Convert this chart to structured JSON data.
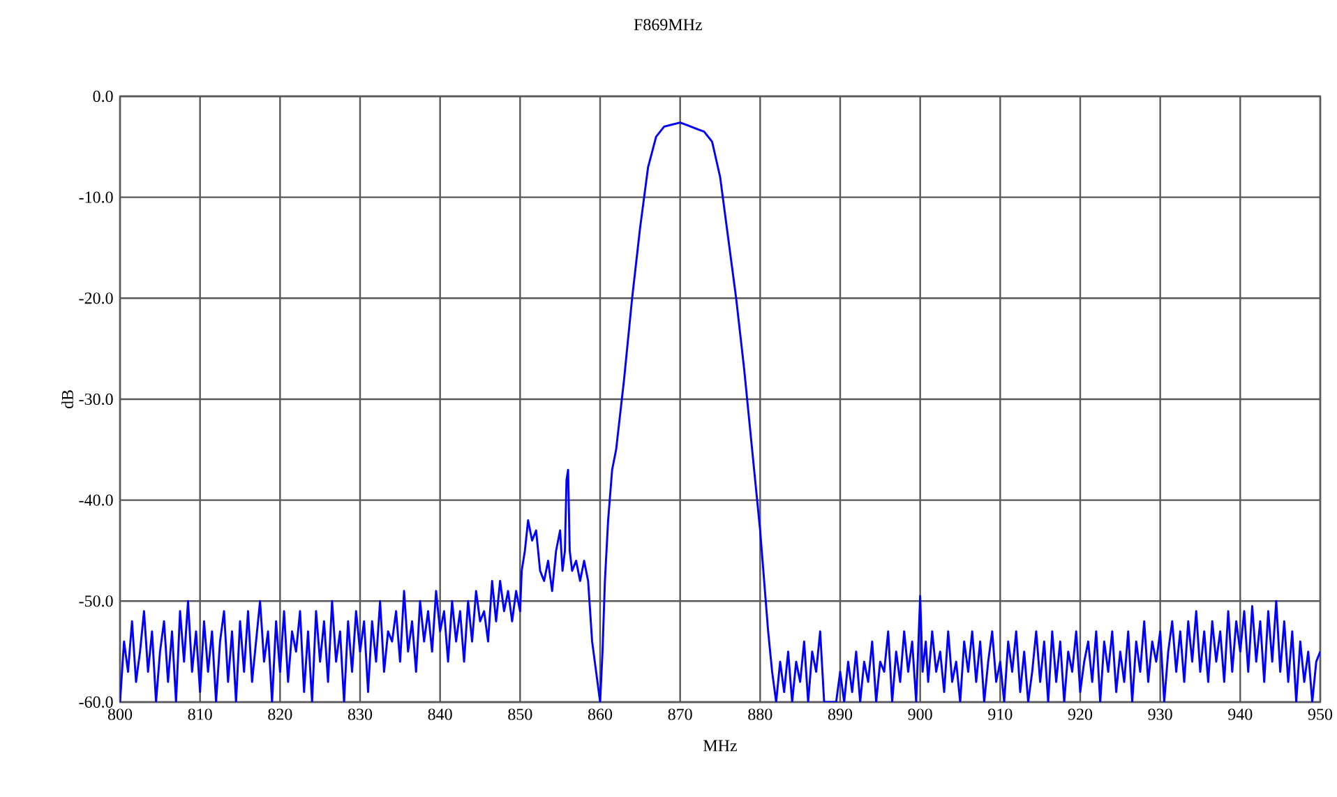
{
  "chart_data": {
    "type": "line",
    "title": "F869MHz",
    "xlabel": "MHz",
    "ylabel": "dB",
    "xlim": [
      800,
      950
    ],
    "xticks": [
      800,
      810,
      820,
      830,
      840,
      850,
      860,
      870,
      880,
      890,
      900,
      910,
      920,
      930,
      940,
      950
    ],
    "ylim": [
      -60,
      0
    ],
    "yticks": [
      {
        "value": -60,
        "label": "-60.0"
      },
      {
        "value": -50,
        "label": "-50.0"
      },
      {
        "value": -40,
        "label": "-40.0"
      },
      {
        "value": -30,
        "label": "-30.0"
      },
      {
        "value": -20,
        "label": "-20.0"
      },
      {
        "value": -10,
        "label": "-10.0"
      },
      {
        "value": 0,
        "label": "0.0"
      }
    ],
    "grid": true,
    "marker": "none",
    "line_style": "solid",
    "series": [
      {
        "color": "#0000ff",
        "x": [
          800,
          800.5,
          801,
          801.5,
          802,
          802.5,
          803,
          803.5,
          804,
          804.5,
          805,
          805.5,
          806,
          806.5,
          807,
          807.5,
          808,
          808.5,
          809,
          809.5,
          810,
          810.5,
          811,
          811.5,
          812,
          812.5,
          813,
          813.5,
          814,
          814.5,
          815,
          815.5,
          816,
          816.5,
          817,
          817.5,
          818,
          818.5,
          819,
          819.5,
          820,
          820.5,
          821,
          821.5,
          822,
          822.5,
          823,
          823.5,
          824,
          824.5,
          825,
          825.5,
          826,
          826.5,
          827,
          827.5,
          828,
          828.5,
          829,
          829.5,
          830,
          830.5,
          831,
          831.5,
          832,
          832.5,
          833,
          833.5,
          834,
          834.5,
          835,
          835.5,
          836,
          836.5,
          837,
          837.5,
          838,
          838.5,
          839,
          839.5,
          840,
          840.5,
          841,
          841.5,
          842,
          842.5,
          843,
          843.5,
          844,
          844.5,
          845,
          845.5,
          846,
          846.5,
          847,
          847.5,
          848,
          848.5,
          849,
          849.5,
          850,
          850.2,
          850.6,
          851,
          851.5,
          852,
          852.5,
          853,
          853.5,
          854,
          854.5,
          855,
          855.3,
          855.6,
          855.8,
          856,
          856.2,
          856.5,
          857,
          857.5,
          858,
          858.5,
          859,
          859.5,
          860,
          860.3,
          860.6,
          861,
          861.5,
          862,
          863,
          864,
          865,
          866,
          867,
          868,
          869,
          870,
          871,
          872,
          873,
          874,
          875,
          876,
          877,
          878,
          879,
          880,
          880.5,
          881,
          881.5,
          882,
          882.5,
          883,
          883.5,
          884,
          884.5,
          885,
          885.5,
          886,
          886.5,
          887,
          887.5,
          888,
          888.5,
          889,
          889.5,
          890,
          890.5,
          891,
          891.5,
          892,
          892.5,
          893,
          893.5,
          894,
          894.5,
          895,
          895.5,
          896,
          896.5,
          897,
          897.5,
          898,
          898.5,
          899,
          899.5,
          900,
          900.3,
          900.7,
          901,
          901.5,
          902,
          902.5,
          903,
          903.5,
          904,
          904.5,
          905,
          905.5,
          906,
          906.5,
          907,
          907.5,
          908,
          908.5,
          909,
          909.5,
          910,
          910.5,
          911,
          911.5,
          912,
          912.5,
          913,
          913.5,
          914,
          914.5,
          915,
          915.5,
          916,
          916.5,
          917,
          917.5,
          918,
          918.5,
          919,
          919.5,
          920,
          920.5,
          921,
          921.5,
          922,
          922.5,
          923,
          923.5,
          924,
          924.5,
          925,
          925.5,
          926,
          926.5,
          927,
          927.5,
          928,
          928.5,
          929,
          929.5,
          930,
          930.5,
          931,
          931.5,
          932,
          932.5,
          933,
          933.5,
          934,
          934.5,
          935,
          935.5,
          936,
          936.5,
          937,
          937.5,
          938,
          938.5,
          939,
          939.5,
          940,
          940.5,
          941,
          941.5,
          942,
          942.5,
          943,
          943.5,
          944,
          944.5,
          945,
          945.5,
          946,
          946.5,
          947,
          947.5,
          948,
          948.5,
          949,
          949.5,
          950
        ],
        "values": [
          -60,
          -54,
          -57,
          -52,
          -58,
          -55,
          -51,
          -57,
          -53,
          -60,
          -55,
          -52,
          -58,
          -53,
          -60,
          -51,
          -56,
          -50,
          -57,
          -53,
          -59,
          -52,
          -57,
          -53,
          -60,
          -54,
          -51,
          -58,
          -53,
          -60,
          -52,
          -57,
          -51,
          -58,
          -54,
          -50,
          -56,
          -53,
          -60,
          -52,
          -57,
          -51,
          -58,
          -53,
          -55,
          -51,
          -59,
          -53,
          -60,
          -51,
          -56,
          -52,
          -58,
          -50,
          -56,
          -53,
          -60,
          -52,
          -57,
          -51,
          -55,
          -52,
          -59,
          -52,
          -56,
          -50,
          -57,
          -53,
          -54,
          -51,
          -56,
          -49,
          -55,
          -52,
          -57,
          -50,
          -54,
          -51,
          -55,
          -49,
          -53,
          -51,
          -56,
          -50,
          -54,
          -51,
          -56,
          -50,
          -54,
          -49,
          -52,
          -51,
          -54,
          -48,
          -52,
          -48,
          -51,
          -49,
          -52,
          -49,
          -51,
          -47,
          -45,
          -42,
          -44,
          -43,
          -47,
          -48,
          -46,
          -49,
          -45,
          -43,
          -47,
          -45,
          -38,
          -37,
          -45,
          -47,
          -46,
          -48,
          -46,
          -48,
          -54,
          -57,
          -60,
          -55,
          -48,
          -42,
          -37,
          -35,
          -28,
          -20,
          -13,
          -7,
          -4,
          -3,
          -2.8,
          -2.6,
          -2.9,
          -3.2,
          -3.5,
          -4.5,
          -8,
          -14,
          -20,
          -27,
          -35,
          -43,
          -48,
          -53,
          -57,
          -60,
          -56,
          -59,
          -55,
          -60,
          -56,
          -58,
          -54,
          -60,
          -55,
          -57,
          -53,
          -60,
          -60,
          -60,
          -60,
          -57,
          -60,
          -56,
          -59,
          -55,
          -60,
          -56,
          -58,
          -54,
          -60,
          -56,
          -57,
          -53,
          -60,
          -55,
          -58,
          -53,
          -57,
          -54,
          -60,
          -49.5,
          -57,
          -54,
          -58,
          -53,
          -57,
          -55,
          -59,
          -53,
          -58,
          -56,
          -60,
          -54,
          -57,
          -53,
          -58,
          -54,
          -60,
          -56,
          -53,
          -58,
          -56,
          -60,
          -54,
          -57,
          -53,
          -59,
          -55,
          -60,
          -57,
          -53,
          -58,
          -54,
          -60,
          -53,
          -58,
          -54,
          -60,
          -55,
          -57,
          -53,
          -59,
          -56,
          -54,
          -58,
          -53,
          -60,
          -54,
          -57,
          -53,
          -59,
          -55,
          -58,
          -53,
          -60,
          -54,
          -57,
          -52,
          -58,
          -54,
          -56,
          -53,
          -60,
          -55,
          -52,
          -57,
          -53,
          -58,
          -52,
          -56,
          -51,
          -57,
          -53,
          -58,
          -52,
          -56,
          -53,
          -58,
          -51,
          -57,
          -52,
          -55,
          -51,
          -57,
          -50.5,
          -56,
          -52,
          -58,
          -51,
          -56,
          -50,
          -57,
          -52,
          -58,
          -53,
          -60,
          -54,
          -58,
          -55,
          -60,
          -56,
          -55
        ]
      }
    ]
  }
}
